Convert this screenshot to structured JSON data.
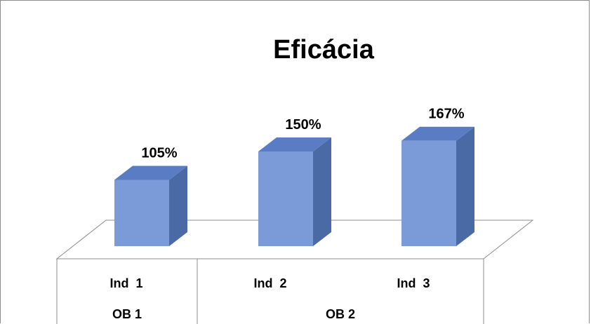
{
  "chart_data": {
    "type": "bar",
    "title": "Eficácia",
    "xlabel": "",
    "ylabel": "",
    "categories": [
      "Ind  1",
      "Ind  2",
      "Ind  3"
    ],
    "groups": [
      {
        "label": "OB 1",
        "categories": [
          "Ind  1"
        ]
      },
      {
        "label": "OB 2",
        "categories": [
          "Ind  2",
          "Ind  3"
        ]
      }
    ],
    "values": [
      105,
      150,
      167
    ],
    "value_labels": [
      "105%",
      "150%",
      "167%"
    ],
    "unit": "%",
    "ylim": [
      0,
      200
    ],
    "style": "3d-column",
    "grid": false,
    "legend": "none",
    "colors": {
      "bar_front": "#7a9ad8",
      "bar_top": "#5a7cc4",
      "bar_side": "#4a6aa6",
      "axis_line": "#8c8c8c"
    }
  }
}
